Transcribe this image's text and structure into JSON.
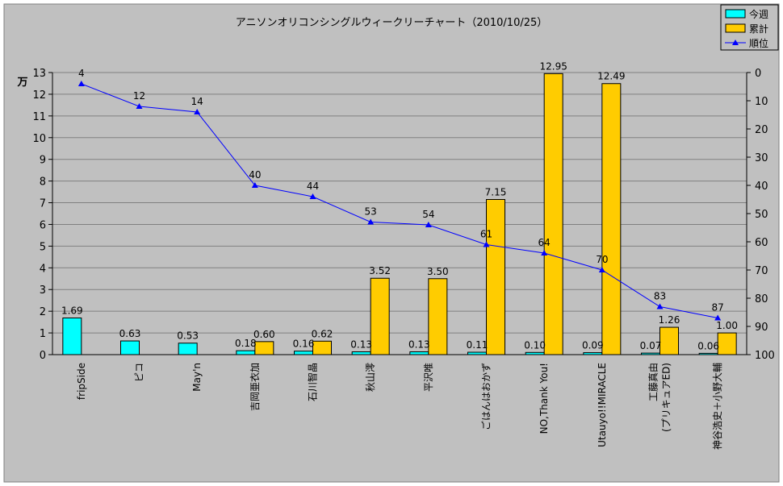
{
  "chart_data": {
    "type": "bar",
    "title": "アニソンオリコンシングルウィークリーチャート（2010/10/25）",
    "ylabel": "万",
    "ylim": [
      0,
      13
    ],
    "y2lim": [
      0,
      100
    ],
    "y2_reversed": true,
    "grid": true,
    "legend_position": "top-right",
    "categories": [
      "fripSide",
      "ピコ",
      "May'n",
      "吉岡亜衣加",
      "石川智晶",
      "秋山澪",
      "平沢唯",
      "ごはんはおかず",
      "NO,Thank You!",
      "Utauyo!!MIRACLE",
      "工藤真由\n(プリキュアED)",
      "神谷浩史＋小野大輔"
    ],
    "yticks": [
      "0",
      "1",
      "2",
      "3",
      "4",
      "5",
      "6",
      "7",
      "8",
      "9",
      "10",
      "11",
      "12",
      "13"
    ],
    "y2ticks": [
      "0",
      "10",
      "20",
      "30",
      "40",
      "50",
      "60",
      "70",
      "80",
      "90",
      "100"
    ],
    "series": [
      {
        "name": "今週",
        "type": "bar",
        "color": "#00ffff",
        "values": [
          1.69,
          0.63,
          0.53,
          0.18,
          0.16,
          0.13,
          0.13,
          0.11,
          0.1,
          0.09,
          0.07,
          0.06
        ],
        "labels": [
          "1.69",
          "0.63",
          "0.53",
          "0.18",
          "0.16",
          "0.13",
          "0.13",
          "0.11",
          "0.10",
          "0.09",
          "0.07",
          "0.06"
        ]
      },
      {
        "name": "累計",
        "type": "bar",
        "color": "#ffcc00",
        "values": [
          null,
          null,
          null,
          0.6,
          0.62,
          3.52,
          3.5,
          7.15,
          12.95,
          12.49,
          1.26,
          1.0
        ],
        "labels": [
          "",
          "",
          "",
          "0.60",
          "0.62",
          "3.52",
          "3.50",
          "7.15",
          "12.95",
          "12.49",
          "1.26",
          "1.00"
        ]
      },
      {
        "name": "順位",
        "type": "line",
        "axis": "right",
        "color": "#0000ff",
        "values": [
          4,
          12,
          14,
          40,
          44,
          53,
          54,
          61,
          64,
          70,
          83,
          87
        ],
        "labels": [
          "4",
          "12",
          "14",
          "40",
          "44",
          "53",
          "54",
          "61",
          "64",
          "70",
          "83",
          "87"
        ]
      }
    ]
  }
}
